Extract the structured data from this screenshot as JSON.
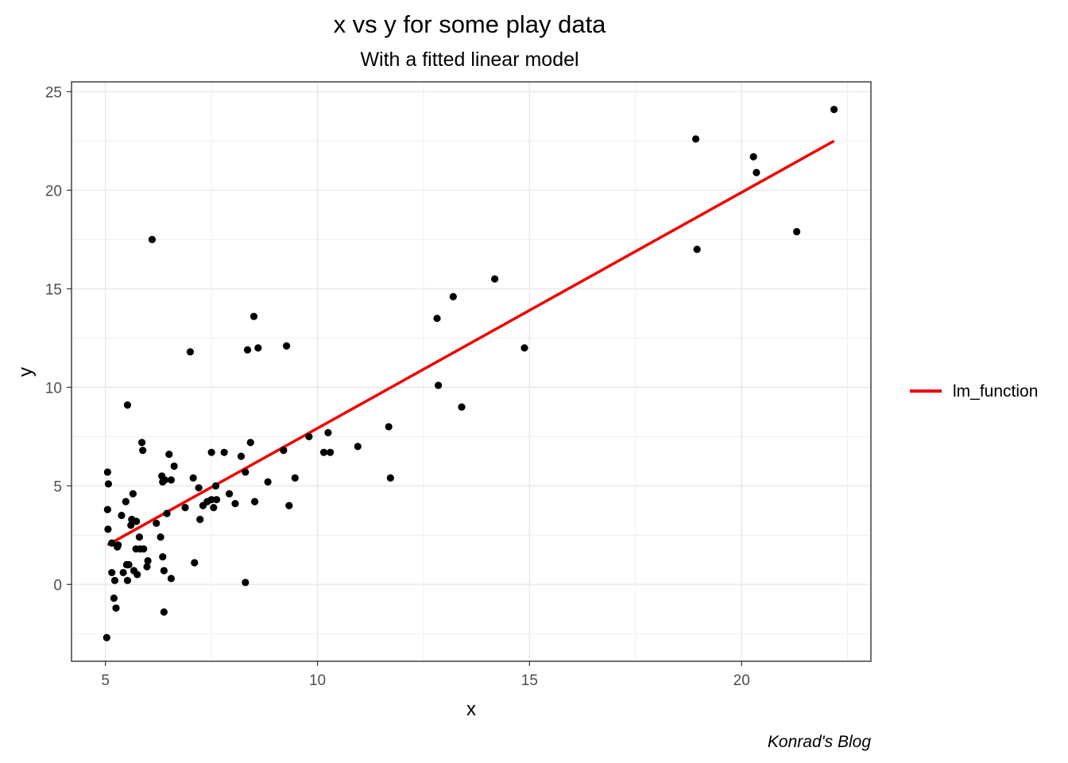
{
  "chart_data": {
    "type": "scatter",
    "title": "x vs y for some play data",
    "subtitle": "With a fitted linear model",
    "xlabel": "x",
    "ylabel": "y",
    "caption": "Konrad's Blog",
    "xlim": [
      4.2,
      23.05
    ],
    "ylim": [
      -3.9,
      25.5
    ],
    "x_ticks": [
      5,
      10,
      15,
      20
    ],
    "y_ticks": [
      0,
      5,
      10,
      15,
      20,
      25
    ],
    "grid": true,
    "legend_position": "right",
    "legend": [
      {
        "label": "lm_function",
        "color": "#ee0000"
      }
    ],
    "colors": {
      "points": "#000000",
      "fit_line": "#ee0000",
      "grid": "#ebebeb",
      "panel_border": "#333333"
    },
    "fit_line": {
      "name": "lm_function",
      "x": [
        5.05,
        22.18
      ],
      "y": [
        2.0,
        22.5
      ]
    },
    "points": [
      [
        5.03,
        -2.7
      ],
      [
        5.05,
        5.7
      ],
      [
        5.07,
        5.1
      ],
      [
        5.05,
        3.8
      ],
      [
        5.06,
        2.8
      ],
      [
        5.15,
        2.1
      ],
      [
        5.15,
        0.6
      ],
      [
        5.2,
        -0.7
      ],
      [
        5.22,
        0.2
      ],
      [
        5.25,
        -1.2
      ],
      [
        5.28,
        1.9
      ],
      [
        5.3,
        2.0
      ],
      [
        5.38,
        3.5
      ],
      [
        5.42,
        0.6
      ],
      [
        5.48,
        4.2
      ],
      [
        5.5,
        1.0
      ],
      [
        5.52,
        9.1
      ],
      [
        5.55,
        1.0
      ],
      [
        5.52,
        0.2
      ],
      [
        5.6,
        3.0
      ],
      [
        5.62,
        3.3
      ],
      [
        5.65,
        4.6
      ],
      [
        5.67,
        0.7
      ],
      [
        5.72,
        1.8
      ],
      [
        5.73,
        3.2
      ],
      [
        5.75,
        0.5
      ],
      [
        5.8,
        2.4
      ],
      [
        5.82,
        1.8
      ],
      [
        5.86,
        7.2
      ],
      [
        5.88,
        6.8
      ],
      [
        5.9,
        1.8
      ],
      [
        5.98,
        0.9
      ],
      [
        6.0,
        1.2
      ],
      [
        6.1,
        17.5
      ],
      [
        6.2,
        3.1
      ],
      [
        6.3,
        2.4
      ],
      [
        6.33,
        5.5
      ],
      [
        6.35,
        1.4
      ],
      [
        6.35,
        5.2
      ],
      [
        6.38,
        -1.4
      ],
      [
        6.38,
        0.7
      ],
      [
        6.4,
        5.3
      ],
      [
        6.45,
        3.6
      ],
      [
        6.5,
        6.6
      ],
      [
        6.55,
        5.3
      ],
      [
        6.55,
        0.3
      ],
      [
        6.62,
        6.0
      ],
      [
        6.88,
        3.9
      ],
      [
        7.0,
        11.8
      ],
      [
        7.07,
        5.4
      ],
      [
        7.1,
        1.1
      ],
      [
        7.2,
        4.9
      ],
      [
        7.23,
        3.3
      ],
      [
        7.3,
        4.0
      ],
      [
        7.4,
        4.2
      ],
      [
        7.5,
        4.3
      ],
      [
        7.5,
        6.7
      ],
      [
        7.55,
        3.9
      ],
      [
        7.6,
        5.0
      ],
      [
        7.62,
        4.3
      ],
      [
        7.8,
        6.7
      ],
      [
        7.92,
        4.6
      ],
      [
        8.06,
        4.1
      ],
      [
        8.2,
        6.5
      ],
      [
        8.3,
        5.7
      ],
      [
        8.3,
        0.1
      ],
      [
        8.35,
        11.9
      ],
      [
        8.42,
        7.2
      ],
      [
        8.5,
        13.6
      ],
      [
        8.52,
        4.2
      ],
      [
        8.6,
        12.0
      ],
      [
        8.83,
        5.2
      ],
      [
        9.2,
        6.8
      ],
      [
        9.27,
        12.1
      ],
      [
        9.33,
        4.0
      ],
      [
        9.47,
        5.4
      ],
      [
        9.8,
        7.5
      ],
      [
        10.15,
        6.7
      ],
      [
        10.25,
        7.7
      ],
      [
        10.3,
        6.7
      ],
      [
        10.95,
        7.0
      ],
      [
        11.68,
        8.0
      ],
      [
        11.72,
        5.4
      ],
      [
        12.82,
        13.5
      ],
      [
        12.85,
        10.1
      ],
      [
        13.2,
        14.6
      ],
      [
        13.4,
        9.0
      ],
      [
        14.18,
        15.5
      ],
      [
        14.88,
        12.0
      ],
      [
        18.92,
        22.6
      ],
      [
        18.95,
        17.0
      ],
      [
        20.28,
        21.7
      ],
      [
        20.35,
        20.9
      ],
      [
        21.3,
        17.9
      ],
      [
        22.18,
        24.1
      ]
    ]
  }
}
